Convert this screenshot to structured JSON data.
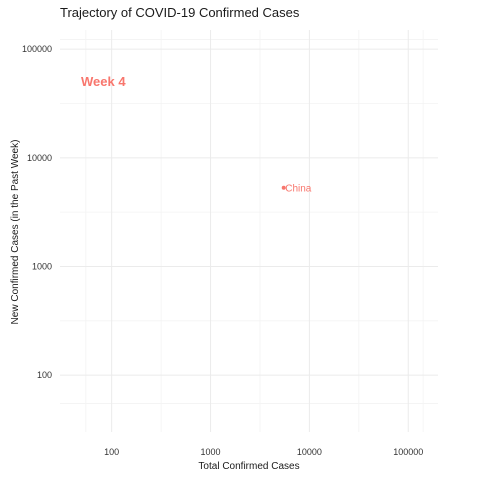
{
  "chart_data": {
    "type": "scatter",
    "title": "Trajectory of COVID-19 Confirmed Cases",
    "xlabel": "Total Confirmed Cases",
    "ylabel": "New Confirmed Cases (in the Past Week)",
    "x_scale": "log",
    "y_scale": "log",
    "xlim": [
      30,
      200000
    ],
    "ylim": [
      30,
      150000
    ],
    "x_ticks": [
      100,
      1000,
      10000,
      100000
    ],
    "x_tick_labels": [
      "100",
      "1000",
      "10000",
      "100000"
    ],
    "y_ticks": [
      100,
      1000,
      10000,
      100000
    ],
    "y_tick_labels": [
      "100",
      "1000",
      "10000",
      "100000"
    ],
    "grid": true,
    "annotation": "Week 4",
    "points": [
      {
        "label": "China",
        "x": 5500,
        "y": 5300
      }
    ],
    "colors": {
      "accent": "#f8766d"
    }
  }
}
